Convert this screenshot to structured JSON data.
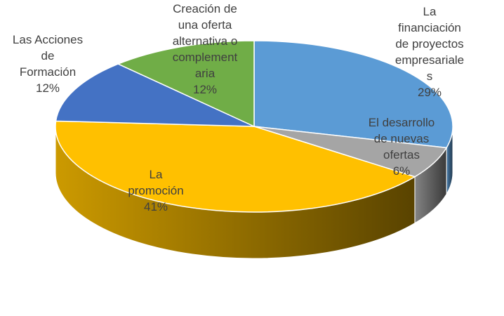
{
  "chart_data": {
    "type": "pie",
    "style": "3d",
    "categories": [
      "La financiación de proyectos empresariales",
      "El desarrollo de nuevas ofertas",
      "La promoción",
      "Las Acciones de Formación",
      "Creación de una oferta alternativa o complementaria"
    ],
    "values": [
      29,
      6,
      41,
      12,
      12
    ],
    "value_labels": [
      "29%",
      "6%",
      "41%",
      "12%",
      "12%"
    ],
    "colors": [
      "#5b9bd5",
      "#a5a5a5",
      "#ffc000",
      "#4472c4",
      "#70ad47"
    ]
  }
}
